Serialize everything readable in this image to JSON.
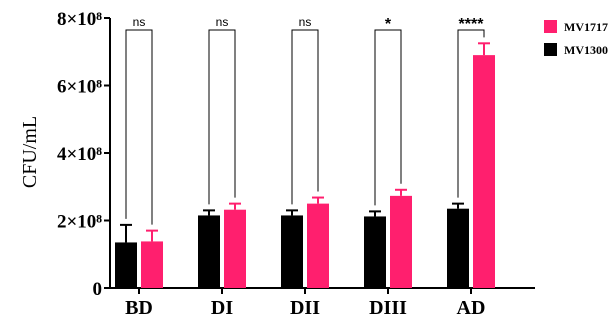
{
  "chart_data": {
    "type": "bar",
    "categories": [
      "BD",
      "DI",
      "DII",
      "DIII",
      "AD"
    ],
    "series": [
      {
        "name": "MV1300",
        "color": "#000000",
        "values": [
          135000000,
          215000000,
          215000000,
          212000000,
          235000000
        ],
        "errors": [
          52000000,
          15000000,
          15000000,
          15000000,
          15000000
        ]
      },
      {
        "name": "MV1717",
        "color": "#ff1f6e",
        "values": [
          138000000,
          232000000,
          250000000,
          273000000,
          690000000
        ],
        "errors": [
          32000000,
          18000000,
          18000000,
          18000000,
          35000000
        ]
      }
    ],
    "significance": [
      "ns",
      "ns",
      "ns",
      "*",
      "****"
    ],
    "ylabel": "CFU/mL",
    "xlabel": "",
    "ylim": [
      0,
      800000000
    ],
    "yticks": [
      0,
      200000000,
      400000000,
      600000000,
      800000000
    ],
    "ytick_labels": [
      "0",
      "2×10⁸",
      "4×10⁸",
      "6×10⁸",
      "8×10⁸"
    ],
    "legend_order": [
      "MV1717",
      "MV1300"
    ],
    "legend_position": "top-right",
    "grid": false
  }
}
